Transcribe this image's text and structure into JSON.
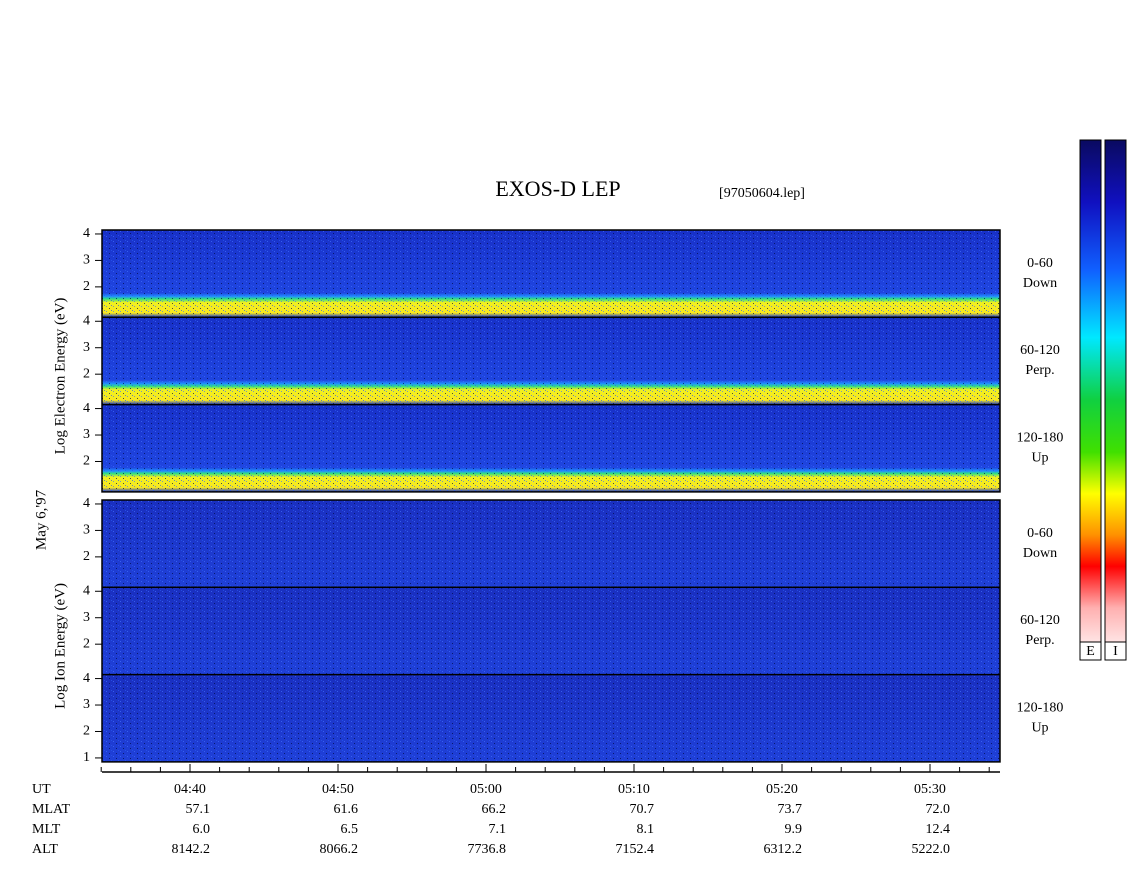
{
  "title": "EXOS-D LEP",
  "file": "[97050604.lep]",
  "date": "May 6,'97",
  "ylim": [
    0.85,
    4.15
  ],
  "panels": [
    {
      "ylabel": "Log  Electron  Energy (eV)",
      "kind": "electron",
      "subpanels": [
        {
          "label": "0-60",
          "sublabel": "Down",
          "yticks": [
            2,
            3,
            4
          ]
        },
        {
          "label": "60-120",
          "sublabel": "Perp.",
          "yticks": [
            2,
            3,
            4
          ]
        },
        {
          "label": "120-180",
          "sublabel": "Up",
          "yticks": [
            2,
            3,
            4
          ]
        }
      ]
    },
    {
      "ylabel": "Log  Ion  Energy (eV)",
      "kind": "ion",
      "subpanels": [
        {
          "label": "0-60",
          "sublabel": "Down",
          "yticks": [
            2,
            3,
            4
          ]
        },
        {
          "label": "60-120",
          "sublabel": "Perp.",
          "yticks": [
            2,
            3,
            4
          ]
        },
        {
          "label": "120-180",
          "sublabel": "Up",
          "yticks": [
            1,
            2,
            3,
            4
          ]
        }
      ]
    }
  ],
  "ephemeris": {
    "rows": [
      "UT",
      "MLAT",
      "MLT",
      "ALT"
    ],
    "columns": [
      [
        "04:40",
        "57.1",
        "6.0",
        "8142.2"
      ],
      [
        "04:50",
        "61.6",
        "6.5",
        "8066.2"
      ],
      [
        "05:00",
        "66.2",
        "7.1",
        "7736.8"
      ],
      [
        "05:10",
        "70.7",
        "8.1",
        "7152.4"
      ],
      [
        "05:20",
        "73.7",
        "9.9",
        "6312.2"
      ],
      [
        "05:30",
        "72.0",
        "12.4",
        "5222.0"
      ]
    ]
  },
  "colorbars": [
    "E",
    "I"
  ]
}
